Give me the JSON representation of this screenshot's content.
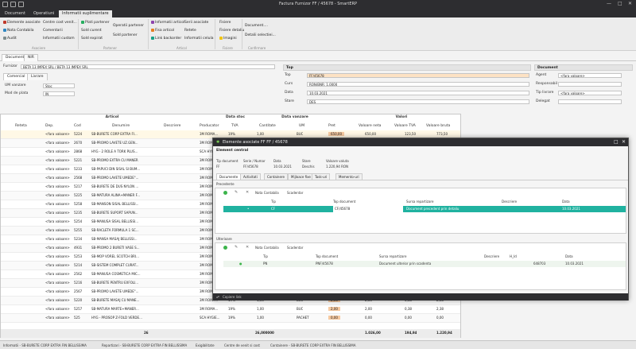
{
  "window": {
    "title": "Factura Furnizor FF / 45678 - SmartERP"
  },
  "ribbon": {
    "tabs": [
      {
        "label": "Document"
      },
      {
        "label": "Operatiuni"
      },
      {
        "label": "Informatii suplimentare"
      }
    ],
    "btn": {
      "elemente": "Elemente asociate",
      "nota": "Nota Contabila",
      "audit": "Audit",
      "centre": "Centre cost venit...",
      "comentarii": "Comentarii",
      "info_custom": "Informatii custom",
      "plati": "Plati partener",
      "sold_curent": "Sold curent",
      "sold_expirat": "Sold expirat",
      "operatii": "Operatii partener",
      "sold_partener": "Sold partener",
      "info_articol": "Informatii articol",
      "fisa": "Fisa articol",
      "link_backorder": "Link backorder",
      "serii": "Serii asociate",
      "retete": "Retete",
      "info_celula": "Informatii celula",
      "fisiere": "Fisiere",
      "fisiere_detaliu": "Fisiere detaliu",
      "imagini": "Imagini",
      "doc_more": "Document....",
      "detalii": "Detalii selectiei..."
    },
    "groups": {
      "asociere": "Asociere",
      "partener": "Partener",
      "articol": "Articol",
      "fisiere": "Fisiere",
      "confirmare": "Confirmare"
    }
  },
  "doctabs": [
    {
      "label": "Document"
    },
    {
      "label": "NIR"
    }
  ],
  "form": {
    "furnizor_label": "Furnizor",
    "furnizor_value": "BETA 13 IMPEX SRL / BETA 13 IMPEX SRL",
    "subtabs": [
      {
        "label": "Comercial"
      },
      {
        "label": "Livrare"
      }
    ],
    "um_label": "UM vanzare",
    "um_value": "Stoc",
    "mod_label": "Mod de plata",
    "mod_value": "IN",
    "top_header": "Top",
    "top_label": "Top",
    "top_value": "FF/45678",
    "curs_label": "Curs",
    "curs_value": "RON/BNR: 1,0000",
    "data_label": "Data",
    "data_value": "10.03.2021",
    "stare_label": "Stare",
    "stare_value": "DES",
    "doc_header": "Document",
    "agent_label": "Agent",
    "agent_value": "<fara valoare>",
    "resp_label": "Responsabil",
    "resp_value": "<fara valoare>",
    "tip_label": "Tip livrare",
    "tip_value": "<fara valoare>",
    "delegat_label": "Delegat",
    "delegat_value": "<fara valoare>"
  },
  "grid": {
    "groups": {
      "articol": "Articol",
      "data_stoc": "Data stoc",
      "data_vanzare": "Data vanzare",
      "valori": "Valori"
    },
    "headers": {
      "reteta": "Reteta",
      "dep": "Dep.",
      "cod": "Cod",
      "denumire": "Denumire",
      "descriere": "Descriere",
      "producator": "Producator",
      "tva": "TVA",
      "cantitate": "Cantitate",
      "um": "UM",
      "pret": "Pret",
      "val_neta": "Valoare neta",
      "val_tva": "Valoare TVA",
      "val_bruta": "Valoare bruta"
    },
    "rows": [
      {
        "dep": "<fara valoare>",
        "cod": "5224",
        "den": "SB-BURETE CORP EXTRA FI...",
        "prod": "3M ROMA...",
        "tva": "19%",
        "cant": "1,00",
        "um": "BUC",
        "pret": "650,00",
        "neta": "650,00",
        "vtva": "123,50",
        "bruta": "773,50"
      },
      {
        "dep": "<fara valoare>",
        "cod": "2670",
        "den": "SB-PROMO LAVETE UZ.GEN...",
        "prod": "3M ROMA...",
        "tva": "",
        "cant": "",
        "um": "",
        "pret": "",
        "neta": "",
        "vtva": "",
        "bruta": ""
      },
      {
        "dep": "<fara valoare>",
        "cod": "2868",
        "den": "HYG - 2 ROLE A TORK PLUS...",
        "prod": "SCA HYGI...",
        "tva": "",
        "cant": "",
        "um": "",
        "pret": "",
        "neta": "",
        "vtva": "",
        "bruta": ""
      },
      {
        "dep": "<fara valoare>",
        "cod": "5221",
        "den": "SB-PROMO EXTRA CU MANER",
        "prod": "3M ROMA...",
        "tva": "",
        "cant": "",
        "um": "",
        "pret": "",
        "neta": "",
        "vtva": "",
        "bruta": ""
      },
      {
        "dep": "<fara valoare>",
        "cod": "5233",
        "den": "SB-PAPUCI DIN SISAL SI BUM...",
        "prod": "3M ROMA...",
        "tva": "",
        "cant": "",
        "um": "",
        "pret": "",
        "neta": "",
        "vtva": "",
        "bruta": ""
      },
      {
        "dep": "<fara valoare>",
        "cod": "2568",
        "den": "SB-PROMO LAVETE UMEDE\"...",
        "prod": "3M ROMA...",
        "tva": "",
        "cant": "",
        "um": "",
        "pret": "",
        "neta": "",
        "vtva": "",
        "bruta": ""
      },
      {
        "dep": "<fara valoare>",
        "cod": "5217",
        "den": "SB-BURETE DE DUS NYLON ...",
        "prod": "3M ROMA...",
        "tva": "",
        "cant": "",
        "um": "",
        "pret": "",
        "neta": "",
        "vtva": "",
        "bruta": ""
      },
      {
        "dep": "<fara valoare>",
        "cod": "5225",
        "den": "SB-MATURA ALINA+MANER F...",
        "prod": "3M ROMA...",
        "tva": "",
        "cant": "",
        "um": "",
        "pret": "",
        "neta": "",
        "vtva": "",
        "bruta": ""
      },
      {
        "dep": "<fara valoare>",
        "cod": "5258",
        "den": "SB-MANSON SISAL BELLISSI...",
        "prod": "3M ROMA...",
        "tva": "",
        "cant": "",
        "um": "",
        "pret": "",
        "neta": "",
        "vtva": "",
        "bruta": ""
      },
      {
        "dep": "<fara valoare>",
        "cod": "5235",
        "den": "SB-BURETE SUPORT SAPUN...",
        "prod": "3M ROMA...",
        "tva": "",
        "cant": "",
        "um": "",
        "pret": "",
        "neta": "",
        "vtva": "",
        "bruta": ""
      },
      {
        "dep": "<fara valoare>",
        "cod": "5254",
        "den": "SB-MANUSA SISAL BELLISSI...",
        "prod": "3M ROMA...",
        "tva": "",
        "cant": "",
        "um": "",
        "pret": "",
        "neta": "",
        "vtva": "",
        "bruta": ""
      },
      {
        "dep": "<fara valoare>",
        "cod": "5255",
        "den": "SB-RACLETA FORMULA 1 SC...",
        "prod": "3M ROMA...",
        "tva": "",
        "cant": "",
        "um": "",
        "pret": "",
        "neta": "",
        "vtva": "",
        "bruta": ""
      },
      {
        "dep": "<fara valoare>",
        "cod": "5234",
        "den": "SB-MANSA MASAJ BELLISSI...",
        "prod": "3M ROMA...",
        "tva": "",
        "cant": "",
        "um": "",
        "pret": "",
        "neta": "",
        "vtva": "",
        "bruta": ""
      },
      {
        "dep": "<fara valoare>",
        "cod": "4931",
        "den": "SB-PROMO 2 BURETI VASE S...",
        "prod": "3M ROMA...",
        "tva": "",
        "cant": "",
        "um": "",
        "pret": "",
        "neta": "",
        "vtva": "",
        "bruta": ""
      },
      {
        "dep": "<fara valoare>",
        "cod": "5253",
        "den": "SB-MOP VOREL SCOTCH BRI...",
        "prod": "3M ROMA...",
        "tva": "",
        "cant": "",
        "um": "",
        "pret": "",
        "neta": "",
        "vtva": "",
        "bruta": ""
      },
      {
        "dep": "<fara valoare>",
        "cod": "5214",
        "den": "SB-SISTEM COMPLET CURAT...",
        "prod": "3M ROMA...",
        "tva": "",
        "cant": "",
        "um": "",
        "pret": "",
        "neta": "",
        "vtva": "",
        "bruta": ""
      },
      {
        "dep": "<fara valoare>",
        "cod": "2562",
        "den": "SB-MANUSA COSMETICA MIC...",
        "prod": "3M ROMA...",
        "tva": "",
        "cant": "",
        "um": "",
        "pret": "",
        "neta": "",
        "vtva": "",
        "bruta": ""
      },
      {
        "dep": "<fara valoare>",
        "cod": "5216",
        "den": "SB-BURETE PENTRU EXFOLI...",
        "prod": "3M ROMA...",
        "tva": "",
        "cant": "",
        "um": "",
        "pret": "",
        "neta": "",
        "vtva": "",
        "bruta": ""
      },
      {
        "dep": "<fara valoare>",
        "cod": "2567",
        "den": "SB-PROMO LAVETE UMEDE\"...",
        "prod": "3M ROMA...",
        "tva": "",
        "cant": "",
        "um": "",
        "pret": "",
        "neta": "",
        "vtva": "",
        "bruta": ""
      },
      {
        "dep": "<fara valoare>",
        "cod": "5220",
        "den": "SB-BURETE MASAJ CU MANE...",
        "prod": "3M ROMA...",
        "tva": "19%",
        "cant": "1,00",
        "um": "BUC",
        "pret": "2,00",
        "neta": "2,00",
        "vtva": "0,38",
        "bruta": "2,38"
      },
      {
        "dep": "<fara valoare>",
        "cod": "5257",
        "den": "SB-MATURA MARTE+MANER...",
        "prod": "3M ROMA...",
        "tva": "19%",
        "cant": "1,00",
        "um": "BUC",
        "pret": "2,00",
        "neta": "2,00",
        "vtva": "0,38",
        "bruta": "2,38"
      },
      {
        "dep": "<fara valoare>",
        "cod": "525",
        "den": "HYG - PROSOP Z-FOLD VERDE...",
        "prod": "SCA HYGIE...",
        "tva": "19%",
        "cant": "1,00",
        "um": "PACHET",
        "pret": "0,00",
        "neta": "0,00",
        "vtva": "0,00",
        "bruta": "0,00"
      }
    ],
    "totals": {
      "count": "26",
      "cant": "26,000000",
      "neta": "1.026,00",
      "vtva": "194,94",
      "bruta": "1.220,94"
    }
  },
  "dialog": {
    "title": "Elemente asociate FF FF / 45678",
    "section": "Element central",
    "headers": {
      "tipdoc": "Tip document",
      "serie": "Serie / Numar",
      "data": "Data",
      "stare": "Stare",
      "valoare": "Valoare valuta"
    },
    "values": {
      "tipdoc": "FF",
      "serie": "FF/45678",
      "data": "10.03.2021",
      "stare": "Deschis",
      "valoare": "1.220,94 RON"
    },
    "tabs": [
      {
        "label": "Documente"
      },
      {
        "label": "Activitati"
      },
      {
        "label": "Containere"
      },
      {
        "label": "Mijloace fixe"
      },
      {
        "label": "Task-uri"
      },
      {
        "label": "Memento-uri"
      }
    ],
    "precedente": {
      "label": "Precedente",
      "nota": "Nota Contabila",
      "scadentar": "Scadentar",
      "headers": {
        "tip": "Tip",
        "top": "Top document",
        "sursa": "Sursa repartizare",
        "descriere": "Descriere",
        "data": "Data"
      },
      "row": {
        "tip": "CF",
        "top": "CF/45678",
        "sursa": "Document precedent prin detaliu",
        "descriere": "",
        "data": "10.03.2021"
      }
    },
    "ulterioare": {
      "label": "Ulterioare",
      "nota": "Nota Contabila",
      "scadentar": "Scadentar",
      "headers": {
        "tip": "Tip",
        "top": "Top document",
        "sursa": "Sursa repartizare",
        "descriere": "Descriere",
        "hid": "H_Id",
        "data": "Data"
      },
      "row": {
        "tip": "PN",
        "top": "PNF/45678",
        "sursa": "Document ulterior prin scadenta",
        "descriere": "",
        "hid": "648703",
        "data": "10.03.2021"
      }
    },
    "footer": "Copiere link"
  },
  "status": {
    "a": "Informatii - SB-BURETE CORP EXTRA FIN BELLISSIMA",
    "b": "Repartizari - SB-BURETE CORP EXTRA FIN BELLISSIMA",
    "c": "Exigibilitate",
    "d": "Centre de venit si cost",
    "e": "Containere - SB-BURETE CORP EXTRA FIN BELLISSIMA"
  }
}
